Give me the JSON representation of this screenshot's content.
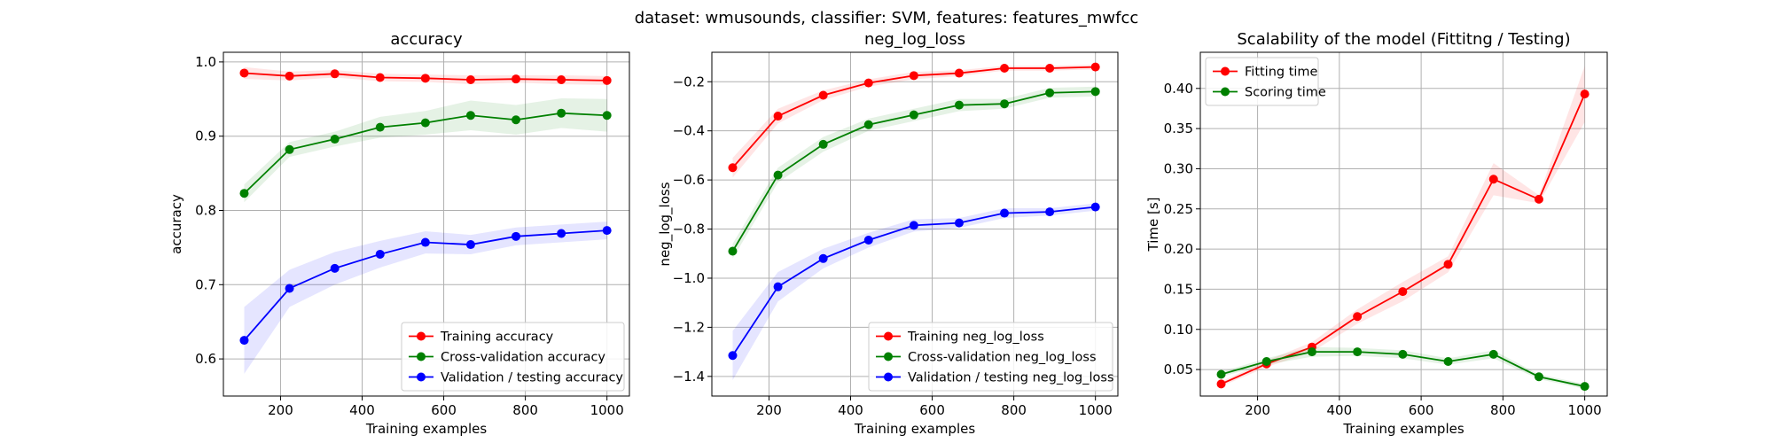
{
  "suptitle": "dataset: wmusounds, classifier: SVM, features: features_mwfcc",
  "charts": [
    {
      "type": "line",
      "title": "accuracy",
      "xlabel": "Training examples",
      "ylabel": "accuracy",
      "xlim": [
        60,
        1055
      ],
      "ylim": [
        0.55,
        1.013
      ],
      "xticks": [
        200,
        400,
        600,
        800,
        1000
      ],
      "yticks": [
        0.6,
        0.7,
        0.8,
        0.9,
        1.0
      ],
      "ytick_labels": [
        "0.6",
        "0.7",
        "0.8",
        "0.9",
        "1.0"
      ],
      "grid": true,
      "legend_position": "lower right",
      "x": [
        111,
        222,
        333,
        444,
        555,
        666,
        777,
        888,
        1000
      ],
      "series": [
        {
          "name": "Training accuracy",
          "color": "#ff0000",
          "values": [
            0.985,
            0.981,
            0.984,
            0.979,
            0.978,
            0.976,
            0.977,
            0.976,
            0.975
          ],
          "std": [
            0.008,
            0.006,
            0.005,
            0.005,
            0.005,
            0.006,
            0.005,
            0.006,
            0.006
          ]
        },
        {
          "name": "Cross-validation accuracy",
          "color": "#008000",
          "values": [
            0.823,
            0.882,
            0.896,
            0.912,
            0.918,
            0.928,
            0.922,
            0.931,
            0.928
          ],
          "std": [
            0.012,
            0.01,
            0.01,
            0.014,
            0.016,
            0.02,
            0.02,
            0.02,
            0.022
          ]
        },
        {
          "name": "Validation / testing accuracy",
          "color": "#0000ff",
          "values": [
            0.625,
            0.695,
            0.722,
            0.741,
            0.757,
            0.754,
            0.765,
            0.769,
            0.773
          ],
          "std": [
            0.045,
            0.025,
            0.022,
            0.018,
            0.015,
            0.013,
            0.012,
            0.012,
            0.012
          ]
        }
      ]
    },
    {
      "type": "line",
      "title": "neg_log_loss",
      "xlabel": "Training examples",
      "ylabel": "neg_log_loss",
      "xlim": [
        60,
        1055
      ],
      "ylim": [
        -1.48,
        -0.08
      ],
      "xticks": [
        200,
        400,
        600,
        800,
        1000
      ],
      "yticks": [
        -1.4,
        -1.2,
        -1.0,
        -0.8,
        -0.6,
        -0.4,
        -0.2
      ],
      "ytick_labels": [
        "−1.4",
        "−1.2",
        "−1.0",
        "−0.8",
        "−0.6",
        "−0.4",
        "−0.2"
      ],
      "grid": true,
      "legend_position": "lower right",
      "x": [
        111,
        222,
        333,
        444,
        555,
        666,
        777,
        888,
        1000
      ],
      "series": [
        {
          "name": "Training neg_log_loss",
          "color": "#ff0000",
          "values": [
            -0.55,
            -0.34,
            -0.255,
            -0.205,
            -0.175,
            -0.165,
            -0.145,
            -0.145,
            -0.14
          ],
          "std": [
            0.04,
            0.03,
            0.02,
            0.015,
            0.015,
            0.012,
            0.01,
            0.01,
            0.01
          ]
        },
        {
          "name": "Cross-validation neg_log_loss",
          "color": "#008000",
          "values": [
            -0.89,
            -0.58,
            -0.455,
            -0.375,
            -0.335,
            -0.295,
            -0.29,
            -0.245,
            -0.24
          ],
          "std": [
            0.03,
            0.03,
            0.03,
            0.025,
            0.025,
            0.025,
            0.02,
            0.02,
            0.02
          ]
        },
        {
          "name": "Validation / testing neg_log_loss",
          "color": "#0000ff",
          "values": [
            -1.315,
            -1.035,
            -0.92,
            -0.845,
            -0.785,
            -0.775,
            -0.735,
            -0.73,
            -0.71
          ],
          "std": [
            0.1,
            0.06,
            0.04,
            0.03,
            0.025,
            0.02,
            0.02,
            0.015,
            0.015
          ]
        }
      ]
    },
    {
      "type": "line",
      "title": "Scalability of the model (Fittitng / Testing)",
      "xlabel": "Training examples",
      "ylabel": "Time [s]",
      "xlim": [
        60,
        1055
      ],
      "ylim": [
        0.017,
        0.445
      ],
      "xticks": [
        200,
        400,
        600,
        800,
        1000
      ],
      "yticks": [
        0.05,
        0.1,
        0.15,
        0.2,
        0.25,
        0.3,
        0.35,
        0.4
      ],
      "ytick_labels": [
        "0.05",
        "0.10",
        "0.15",
        "0.20",
        "0.25",
        "0.30",
        "0.35",
        "0.40"
      ],
      "grid": true,
      "legend_position": "upper left",
      "x": [
        111,
        222,
        333,
        444,
        555,
        666,
        777,
        888,
        1000
      ],
      "series": [
        {
          "name": "Fitting time",
          "color": "#ff0000",
          "values": [
            0.032,
            0.057,
            0.078,
            0.116,
            0.147,
            0.181,
            0.287,
            0.262,
            0.393
          ],
          "std": [
            0.003,
            0.004,
            0.006,
            0.009,
            0.012,
            0.01,
            0.02,
            0.005,
            0.035
          ]
        },
        {
          "name": "Scoring time",
          "color": "#008000",
          "values": [
            0.044,
            0.06,
            0.072,
            0.072,
            0.069,
            0.06,
            0.069,
            0.041,
            0.029
          ],
          "std": [
            0.003,
            0.004,
            0.006,
            0.005,
            0.005,
            0.004,
            0.005,
            0.003,
            0.003
          ]
        }
      ]
    }
  ]
}
